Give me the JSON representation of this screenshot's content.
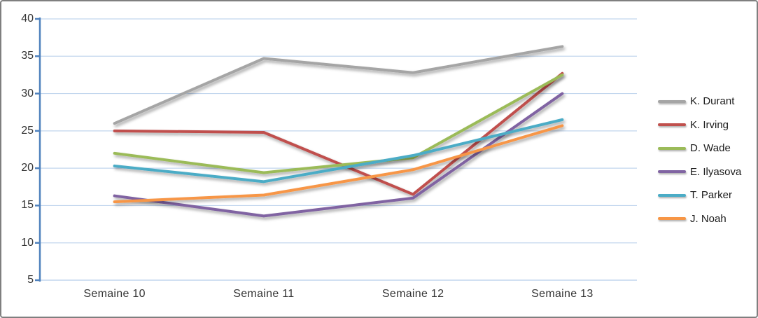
{
  "chart_data": {
    "type": "line",
    "title": "",
    "xlabel": "",
    "ylabel": "",
    "categories": [
      "Semaine 10",
      "Semaine 11",
      "Semaine 12",
      "Semaine 13"
    ],
    "series": [
      {
        "name": "K. Durant",
        "color": "#A5A5A5",
        "values": [
          26.0,
          34.7,
          32.8,
          36.3
        ]
      },
      {
        "name": "K. Irving",
        "color": "#C0504D",
        "values": [
          25.0,
          24.8,
          16.5,
          32.7
        ]
      },
      {
        "name": "D. Wade",
        "color": "#9BBB59",
        "values": [
          22.0,
          19.4,
          21.4,
          32.5
        ]
      },
      {
        "name": "E. Ilyasova",
        "color": "#8064A2",
        "values": [
          16.3,
          13.6,
          16.0,
          30.0
        ]
      },
      {
        "name": "T. Parker",
        "color": "#4BACC6",
        "values": [
          20.3,
          18.2,
          21.7,
          26.5
        ]
      },
      {
        "name": "J. Noah",
        "color": "#F79646",
        "values": [
          15.5,
          16.4,
          19.8,
          25.7
        ]
      }
    ],
    "ylim": [
      5,
      40
    ],
    "ytick_step": 5,
    "ytick_labels": [
      "40",
      "35",
      "30",
      "25",
      "20",
      "15",
      "10",
      "5"
    ],
    "grid": true,
    "legend_position": "right",
    "axis_color": "#4F81BD",
    "gridline_color": "#C2D6EE",
    "label_color": "#353535",
    "line_width": 4
  }
}
